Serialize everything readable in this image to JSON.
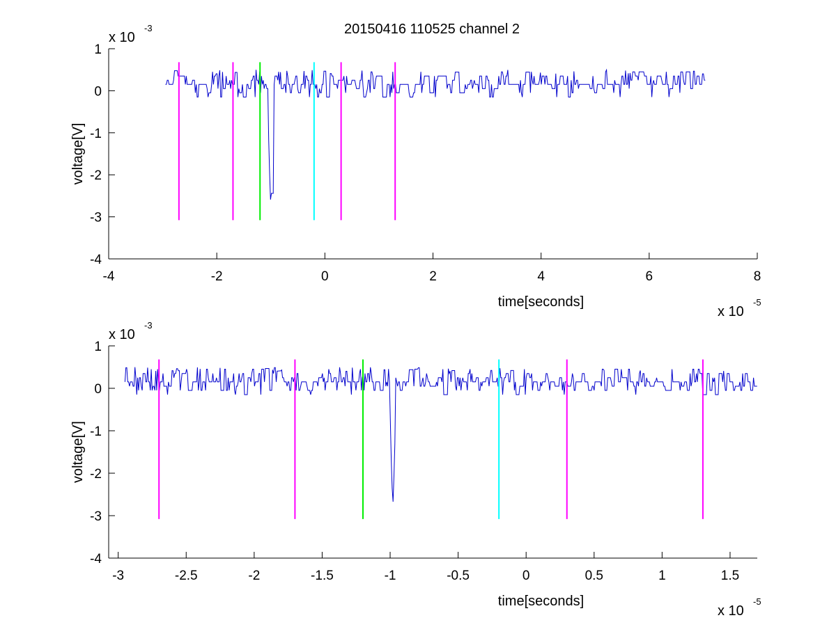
{
  "figure": {
    "title": "20150416 110525 channel 2"
  },
  "chart_data": [
    {
      "type": "line",
      "title": "20150416 110525 channel 2",
      "xlabel": "time[seconds]",
      "ylabel": "voltage[V]",
      "x_exponent_label": "x 10",
      "x_exponent": "-5",
      "y_exponent_label": "x 10",
      "y_exponent": "-3",
      "xlim": [
        -4,
        8
      ],
      "ylim": [
        -4,
        1
      ],
      "x_ticks": [
        -4,
        -2,
        0,
        2,
        4,
        6,
        8
      ],
      "x_tick_labels": [
        "-4",
        "-2",
        "0",
        "2",
        "4",
        "6",
        "8"
      ],
      "y_ticks": [
        -4,
        -3,
        -2,
        -1,
        0,
        1
      ],
      "y_tick_labels": [
        "-4",
        "-3",
        "-2",
        "-1",
        "0",
        "1"
      ],
      "grid": false,
      "trace": {
        "color": "#0000cc",
        "x_start": -2.95,
        "x_end": 7.05,
        "baseline": 0.15,
        "noise_amplitude": 0.25,
        "dip": {
          "x": -1.0,
          "min": -2.8
        }
      },
      "markers": [
        {
          "x": -2.7,
          "color": "#ff00ff"
        },
        {
          "x": -1.7,
          "color": "#ff00ff"
        },
        {
          "x": -1.2,
          "color": "#00ee00"
        },
        {
          "x": -0.2,
          "color": "#00ffff"
        },
        {
          "x": 0.3,
          "color": "#ff00ff"
        },
        {
          "x": 1.3,
          "color": "#ff00ff"
        }
      ],
      "marker_range": [
        -3.08,
        0.68
      ]
    },
    {
      "type": "line",
      "title": "",
      "xlabel": "time[seconds]",
      "ylabel": "voltage[V]",
      "x_exponent_label": "x 10",
      "x_exponent": "-5",
      "y_exponent_label": "x 10",
      "y_exponent": "-3",
      "xlim": [
        -3.07,
        1.7
      ],
      "ylim": [
        -4,
        1
      ],
      "x_ticks": [
        -3,
        -2.5,
        -2,
        -1.5,
        -1,
        -0.5,
        0,
        0.5,
        1,
        1.5
      ],
      "x_tick_labels": [
        "-3",
        "-2.5",
        "-2",
        "-1.5",
        "-1",
        "-0.5",
        "0",
        "0.5",
        "1",
        "1.5"
      ],
      "y_ticks": [
        -4,
        -3,
        -2,
        -1,
        0,
        1
      ],
      "y_tick_labels": [
        "-4",
        "-3",
        "-2",
        "-1",
        "0",
        "1"
      ],
      "grid": false,
      "trace": {
        "color": "#0000cc",
        "x_start": -2.95,
        "x_end": 1.7,
        "baseline": 0.15,
        "noise_amplitude": 0.25,
        "dip": {
          "x": -0.98,
          "min": -2.8
        }
      },
      "markers": [
        {
          "x": -2.7,
          "color": "#ff00ff"
        },
        {
          "x": -1.7,
          "color": "#ff00ff"
        },
        {
          "x": -1.2,
          "color": "#00ee00"
        },
        {
          "x": -0.2,
          "color": "#00ffff"
        },
        {
          "x": 0.3,
          "color": "#ff00ff"
        },
        {
          "x": 1.3,
          "color": "#ff00ff"
        }
      ],
      "marker_range": [
        -3.08,
        0.68
      ]
    }
  ]
}
